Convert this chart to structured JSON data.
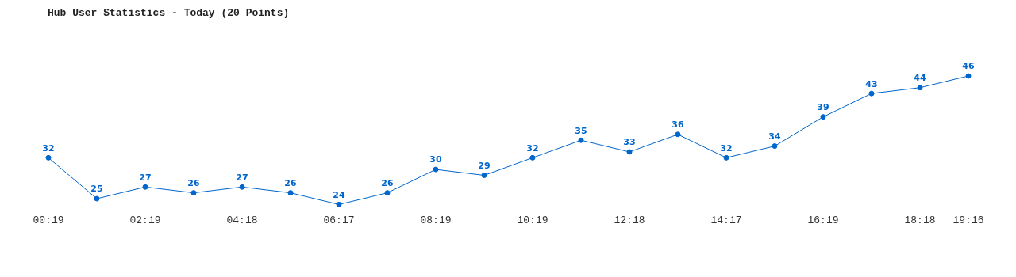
{
  "chart_data": {
    "type": "line",
    "title": "Hub User Statistics - Today (20 Points)",
    "categories": [
      "00:19",
      null,
      "02:19",
      null,
      "04:18",
      null,
      "06:17",
      null,
      "08:19",
      null,
      "10:19",
      null,
      "12:18",
      null,
      "14:17",
      null,
      "16:19",
      null,
      "18:18",
      "19:16"
    ],
    "series": [
      {
        "color": "#0066cc",
        "values": [
          32,
          25,
          27,
          26,
          27,
          26,
          24,
          26,
          30,
          29,
          32,
          35,
          33,
          36,
          32,
          34,
          39,
          43,
          44,
          46
        ]
      }
    ],
    "data_labels": true,
    "marker": "circle",
    "line_style": "solid",
    "grid": false,
    "legend": false
  }
}
